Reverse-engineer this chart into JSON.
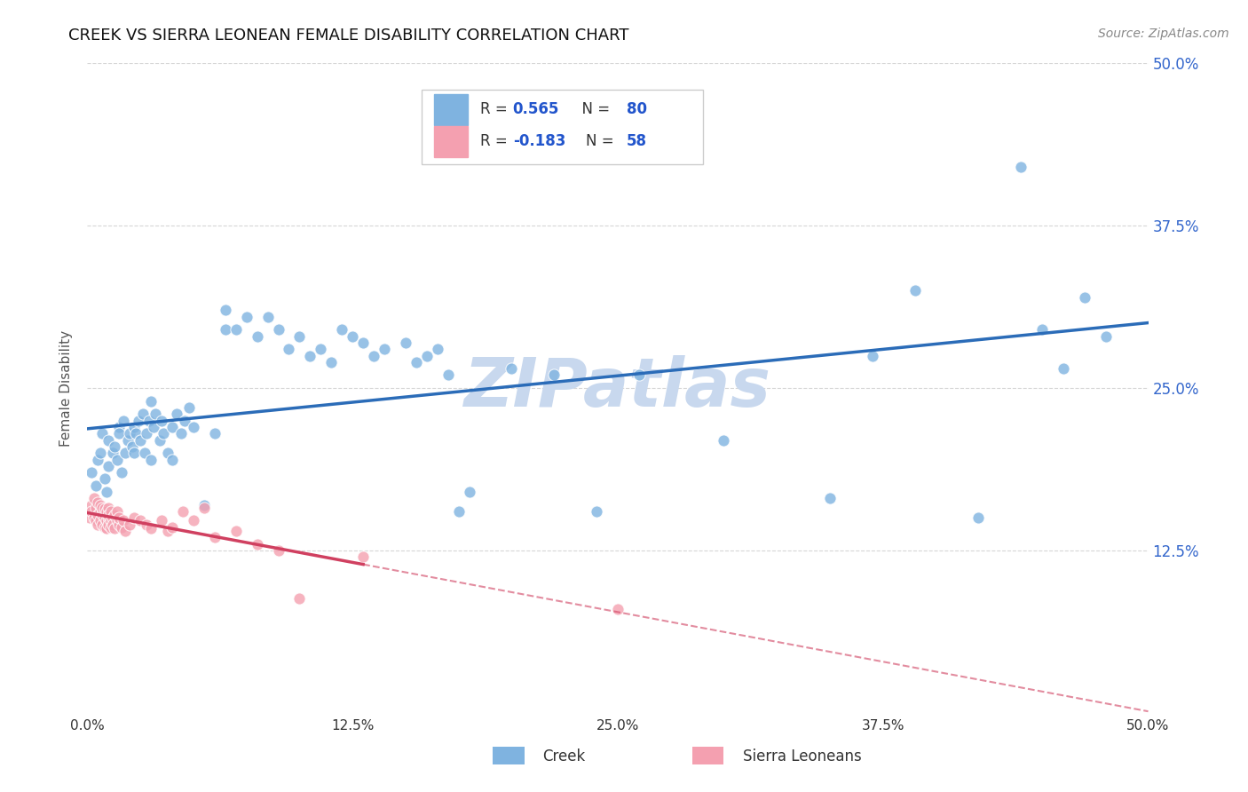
{
  "title": "CREEK VS SIERRA LEONEAN FEMALE DISABILITY CORRELATION CHART",
  "source": "Source: ZipAtlas.com",
  "ylabel": "Female Disability",
  "xlim": [
    0.0,
    0.5
  ],
  "ylim": [
    0.0,
    0.5
  ],
  "xtick_labels": [
    "0.0%",
    "12.5%",
    "25.0%",
    "37.5%",
    "50.0%"
  ],
  "xtick_vals": [
    0.0,
    0.125,
    0.25,
    0.375,
    0.5
  ],
  "ytick_vals": [
    0.125,
    0.25,
    0.375,
    0.5
  ],
  "right_ytick_labels": [
    "12.5%",
    "25.0%",
    "37.5%",
    "50.0%"
  ],
  "right_ytick_vals": [
    0.125,
    0.25,
    0.375,
    0.5
  ],
  "creek_color": "#7FB3E0",
  "sierra_color": "#F4A0B0",
  "creek_line_color": "#2B6CB8",
  "sierra_line_color": "#D04060",
  "watermark": "ZIPatlas",
  "watermark_color": "#C8D8EE",
  "background_color": "#FFFFFF",
  "grid_color": "#CCCCCC",
  "creek_points": [
    [
      0.002,
      0.185
    ],
    [
      0.004,
      0.175
    ],
    [
      0.005,
      0.195
    ],
    [
      0.006,
      0.2
    ],
    [
      0.007,
      0.215
    ],
    [
      0.008,
      0.18
    ],
    [
      0.009,
      0.17
    ],
    [
      0.01,
      0.19
    ],
    [
      0.01,
      0.21
    ],
    [
      0.012,
      0.2
    ],
    [
      0.013,
      0.205
    ],
    [
      0.014,
      0.195
    ],
    [
      0.015,
      0.22
    ],
    [
      0.015,
      0.215
    ],
    [
      0.016,
      0.185
    ],
    [
      0.017,
      0.225
    ],
    [
      0.018,
      0.2
    ],
    [
      0.019,
      0.21
    ],
    [
      0.02,
      0.215
    ],
    [
      0.021,
      0.205
    ],
    [
      0.022,
      0.22
    ],
    [
      0.022,
      0.2
    ],
    [
      0.023,
      0.215
    ],
    [
      0.024,
      0.225
    ],
    [
      0.025,
      0.21
    ],
    [
      0.026,
      0.23
    ],
    [
      0.027,
      0.2
    ],
    [
      0.028,
      0.215
    ],
    [
      0.029,
      0.225
    ],
    [
      0.03,
      0.195
    ],
    [
      0.03,
      0.24
    ],
    [
      0.031,
      0.22
    ],
    [
      0.032,
      0.23
    ],
    [
      0.034,
      0.21
    ],
    [
      0.035,
      0.225
    ],
    [
      0.036,
      0.215
    ],
    [
      0.038,
      0.2
    ],
    [
      0.04,
      0.22
    ],
    [
      0.04,
      0.195
    ],
    [
      0.042,
      0.23
    ],
    [
      0.044,
      0.215
    ],
    [
      0.046,
      0.225
    ],
    [
      0.048,
      0.235
    ],
    [
      0.05,
      0.22
    ],
    [
      0.055,
      0.16
    ],
    [
      0.06,
      0.215
    ],
    [
      0.065,
      0.295
    ],
    [
      0.065,
      0.31
    ],
    [
      0.07,
      0.295
    ],
    [
      0.075,
      0.305
    ],
    [
      0.08,
      0.29
    ],
    [
      0.085,
      0.305
    ],
    [
      0.09,
      0.295
    ],
    [
      0.095,
      0.28
    ],
    [
      0.1,
      0.29
    ],
    [
      0.105,
      0.275
    ],
    [
      0.11,
      0.28
    ],
    [
      0.115,
      0.27
    ],
    [
      0.12,
      0.295
    ],
    [
      0.125,
      0.29
    ],
    [
      0.13,
      0.285
    ],
    [
      0.135,
      0.275
    ],
    [
      0.14,
      0.28
    ],
    [
      0.15,
      0.285
    ],
    [
      0.155,
      0.27
    ],
    [
      0.16,
      0.275
    ],
    [
      0.165,
      0.28
    ],
    [
      0.17,
      0.26
    ],
    [
      0.175,
      0.155
    ],
    [
      0.18,
      0.17
    ],
    [
      0.2,
      0.265
    ],
    [
      0.22,
      0.26
    ],
    [
      0.24,
      0.155
    ],
    [
      0.26,
      0.26
    ],
    [
      0.3,
      0.21
    ],
    [
      0.35,
      0.165
    ],
    [
      0.37,
      0.275
    ],
    [
      0.39,
      0.325
    ],
    [
      0.42,
      0.15
    ],
    [
      0.44,
      0.42
    ],
    [
      0.45,
      0.295
    ],
    [
      0.46,
      0.265
    ],
    [
      0.47,
      0.32
    ],
    [
      0.48,
      0.29
    ]
  ],
  "sierra_points": [
    [
      0.001,
      0.15
    ],
    [
      0.002,
      0.16
    ],
    [
      0.002,
      0.155
    ],
    [
      0.003,
      0.165
    ],
    [
      0.003,
      0.15
    ],
    [
      0.004,
      0.158
    ],
    [
      0.004,
      0.148
    ],
    [
      0.005,
      0.152
    ],
    [
      0.005,
      0.162
    ],
    [
      0.005,
      0.145
    ],
    [
      0.006,
      0.155
    ],
    [
      0.006,
      0.148
    ],
    [
      0.006,
      0.16
    ],
    [
      0.007,
      0.153
    ],
    [
      0.007,
      0.145
    ],
    [
      0.007,
      0.158
    ],
    [
      0.008,
      0.15
    ],
    [
      0.008,
      0.143
    ],
    [
      0.008,
      0.157
    ],
    [
      0.009,
      0.148
    ],
    [
      0.009,
      0.155
    ],
    [
      0.009,
      0.142
    ],
    [
      0.01,
      0.15
    ],
    [
      0.01,
      0.145
    ],
    [
      0.01,
      0.158
    ],
    [
      0.01,
      0.152
    ],
    [
      0.011,
      0.148
    ],
    [
      0.011,
      0.155
    ],
    [
      0.011,
      0.143
    ],
    [
      0.012,
      0.15
    ],
    [
      0.012,
      0.145
    ],
    [
      0.013,
      0.152
    ],
    [
      0.013,
      0.142
    ],
    [
      0.014,
      0.148
    ],
    [
      0.014,
      0.155
    ],
    [
      0.015,
      0.145
    ],
    [
      0.015,
      0.15
    ],
    [
      0.016,
      0.143
    ],
    [
      0.017,
      0.148
    ],
    [
      0.018,
      0.14
    ],
    [
      0.02,
      0.145
    ],
    [
      0.022,
      0.15
    ],
    [
      0.025,
      0.148
    ],
    [
      0.028,
      0.145
    ],
    [
      0.03,
      0.142
    ],
    [
      0.035,
      0.148
    ],
    [
      0.038,
      0.14
    ],
    [
      0.04,
      0.143
    ],
    [
      0.045,
      0.155
    ],
    [
      0.05,
      0.148
    ],
    [
      0.055,
      0.158
    ],
    [
      0.06,
      0.135
    ],
    [
      0.07,
      0.14
    ],
    [
      0.08,
      0.13
    ],
    [
      0.09,
      0.125
    ],
    [
      0.1,
      0.088
    ],
    [
      0.13,
      0.12
    ],
    [
      0.25,
      0.08
    ]
  ],
  "legend_box_color": "#FFFFFF",
  "legend_border_color": "#CCCCCC",
  "legend_text_color": "#333333",
  "legend_value_color": "#2255CC"
}
